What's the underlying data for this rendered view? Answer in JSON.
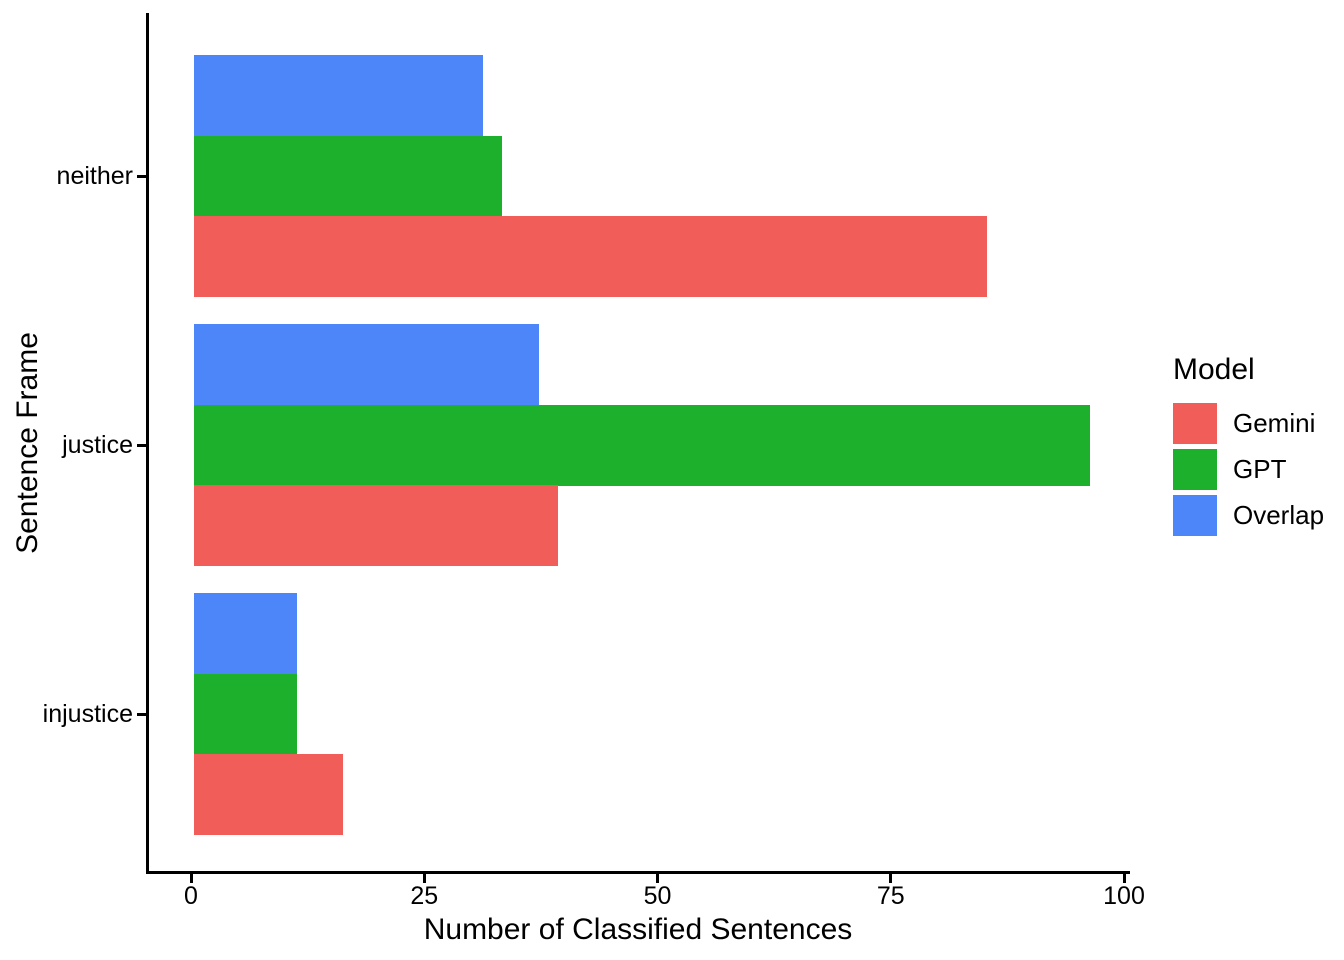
{
  "chart_data": {
    "type": "bar",
    "orientation": "horizontal",
    "title": "",
    "xlabel": "Number of Classified Sentences",
    "ylabel": "Sentence Frame",
    "categories": [
      "neither",
      "justice",
      "injustice"
    ],
    "series": [
      {
        "name": "Gemini",
        "color": "#F15E59",
        "values": [
          85,
          39,
          16
        ]
      },
      {
        "name": "GPT",
        "color": "#1CB02C",
        "values": [
          33,
          96,
          11
        ]
      },
      {
        "name": "Overlap",
        "color": "#4D86F8",
        "values": [
          31,
          37,
          11
        ]
      }
    ],
    "xlim": [
      0,
      100
    ],
    "x_ticks": [
      "0",
      "25",
      "50",
      "75",
      "100"
    ],
    "grid": false,
    "legend": {
      "title": "Model",
      "position": "right",
      "entries": [
        "Gemini",
        "GPT",
        "Overlap"
      ]
    },
    "colors": {
      "axis_line": "#000000",
      "text": "#000000",
      "background": "#ffffff"
    }
  }
}
